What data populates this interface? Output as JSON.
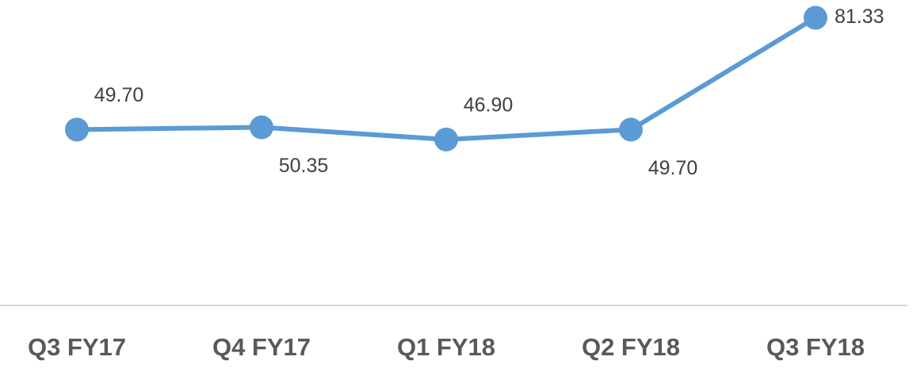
{
  "chart_data": {
    "type": "line",
    "categories": [
      "Q3 FY17",
      "Q4 FY17",
      "Q1 FY18",
      "Q2 FY18",
      "Q3 FY18"
    ],
    "values": [
      49.7,
      50.35,
      46.9,
      49.7,
      81.33
    ],
    "value_labels": [
      "49.70",
      "50.35",
      "46.90",
      "49.70",
      "81.33"
    ],
    "color": "#5b9bd5",
    "ylim": [
      0,
      85
    ]
  }
}
